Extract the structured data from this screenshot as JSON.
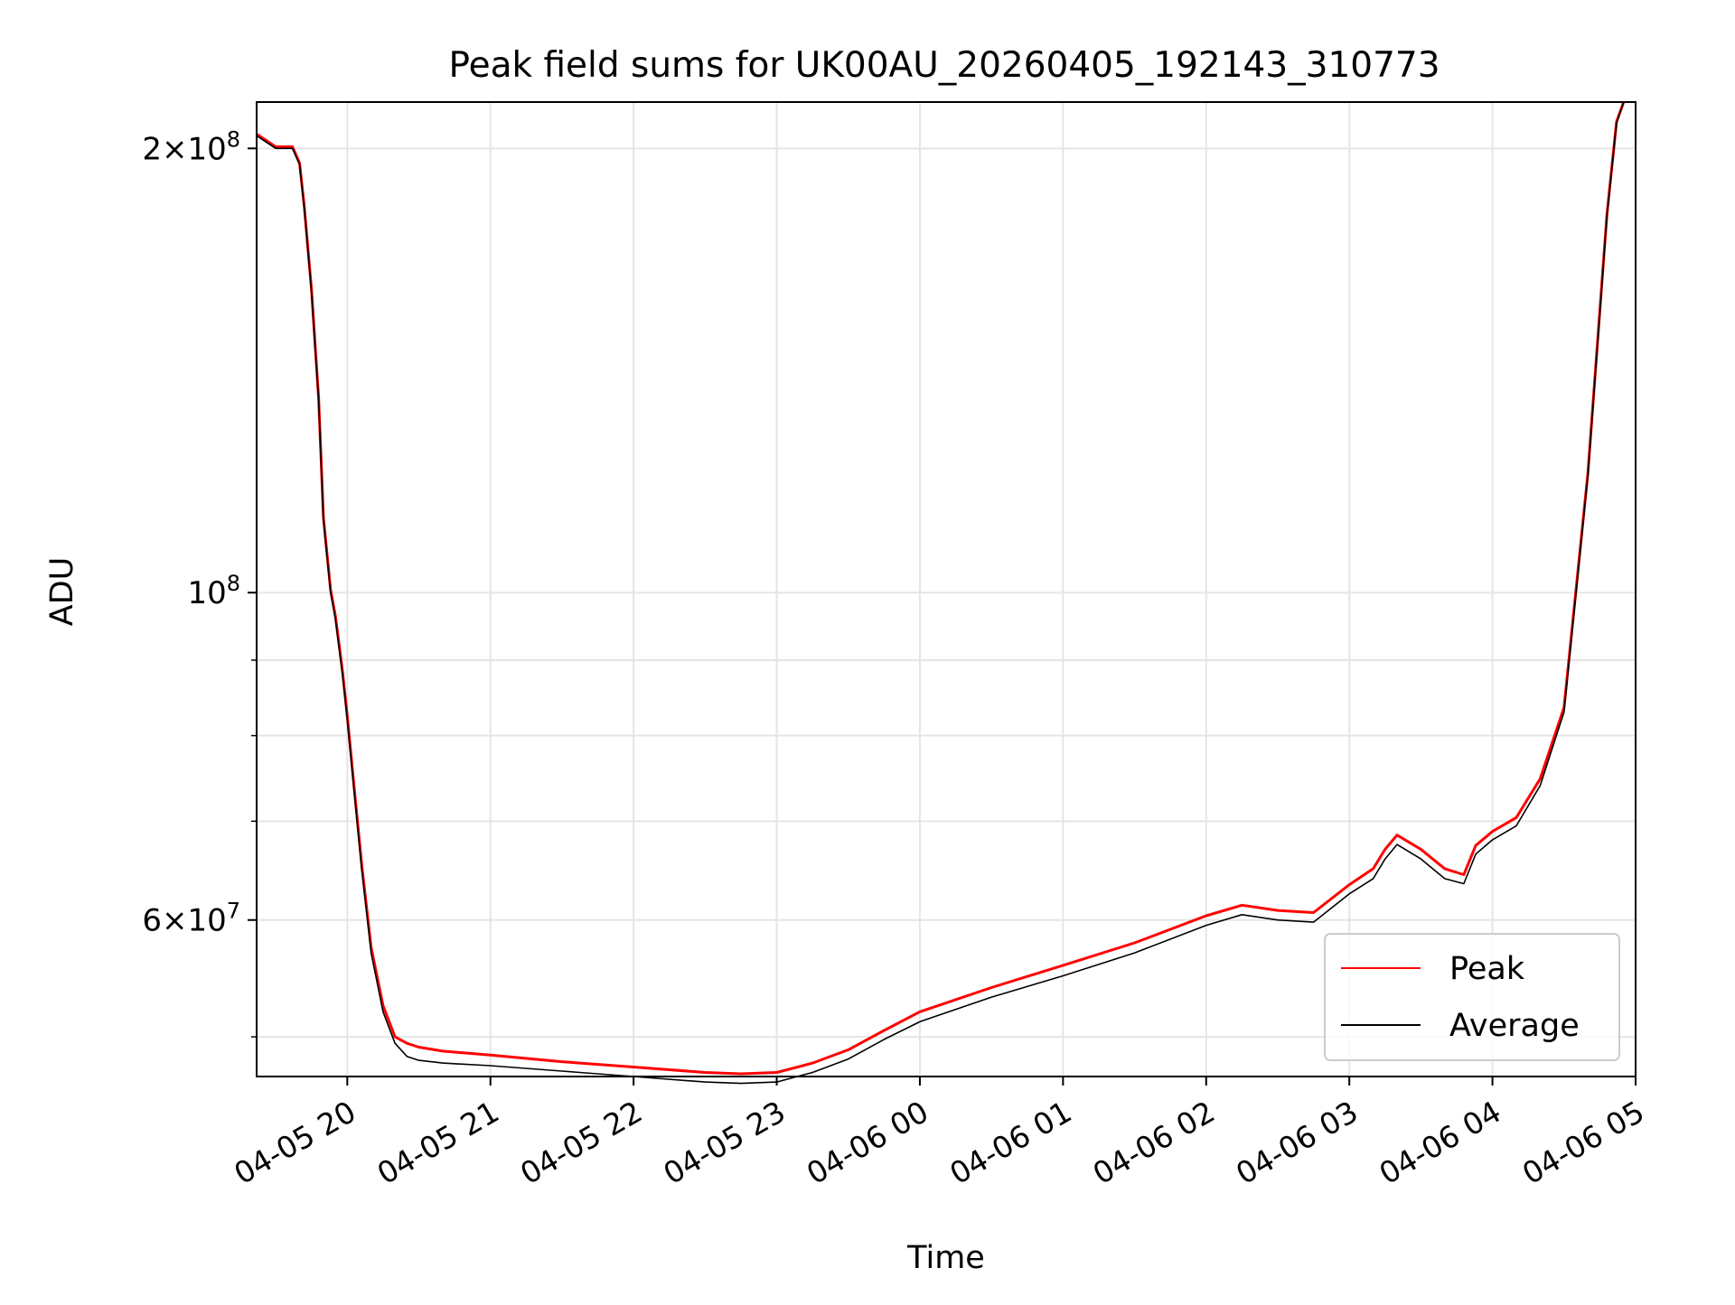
{
  "chart_data": {
    "type": "line",
    "title": "Peak field sums for UK00AU_20260405_192143_310773",
    "xlabel": "Time",
    "ylabel": "ADU",
    "yscale": "log",
    "grid": true,
    "legend_position": "bottom-right",
    "xlim": [
      "2026-04-05 19:22",
      "2026-04-06 05:00"
    ],
    "ylim": [
      47000000,
      215000000
    ],
    "x_ticks": [
      {
        "value": "2026-04-05 20:00",
        "label": "04-05 20"
      },
      {
        "value": "2026-04-05 21:00",
        "label": "04-05 21"
      },
      {
        "value": "2026-04-05 22:00",
        "label": "04-05 22"
      },
      {
        "value": "2026-04-05 23:00",
        "label": "04-05 23"
      },
      {
        "value": "2026-04-06 00:00",
        "label": "04-06 00"
      },
      {
        "value": "2026-04-06 01:00",
        "label": "04-06 01"
      },
      {
        "value": "2026-04-06 02:00",
        "label": "04-06 02"
      },
      {
        "value": "2026-04-06 03:00",
        "label": "04-06 03"
      },
      {
        "value": "2026-04-06 04:00",
        "label": "04-06 04"
      },
      {
        "value": "2026-04-06 05:00",
        "label": "04-06 05"
      }
    ],
    "y_major_ticks": [
      {
        "value": 200000000,
        "mantissa": "2",
        "exponent": "8"
      },
      {
        "value": 100000000,
        "mantissa": "",
        "exponent": "8"
      },
      {
        "value": 60000000,
        "mantissa": "6",
        "exponent": "7"
      }
    ],
    "y_minor_ticks": [
      50000000,
      70000000,
      80000000,
      90000000
    ],
    "x": [
      "2026-04-05 19:22",
      "2026-04-05 19:30",
      "2026-04-05 19:37",
      "2026-04-05 19:40",
      "2026-04-05 19:42",
      "2026-04-05 19:45",
      "2026-04-05 19:48",
      "2026-04-05 19:50",
      "2026-04-05 19:53",
      "2026-04-05 19:55",
      "2026-04-05 19:58",
      "2026-04-05 20:00",
      "2026-04-05 20:03",
      "2026-04-05 20:06",
      "2026-04-05 20:10",
      "2026-04-05 20:15",
      "2026-04-05 20:20",
      "2026-04-05 20:25",
      "2026-04-05 20:30",
      "2026-04-05 20:40",
      "2026-04-05 21:00",
      "2026-04-05 21:30",
      "2026-04-05 22:00",
      "2026-04-05 22:30",
      "2026-04-05 22:45",
      "2026-04-05 23:00",
      "2026-04-05 23:15",
      "2026-04-05 23:30",
      "2026-04-05 23:45",
      "2026-04-06 00:00",
      "2026-04-06 00:30",
      "2026-04-06 01:00",
      "2026-04-06 01:30",
      "2026-04-06 02:00",
      "2026-04-06 02:15",
      "2026-04-06 02:30",
      "2026-04-06 02:45",
      "2026-04-06 03:00",
      "2026-04-06 03:10",
      "2026-04-06 03:15",
      "2026-04-06 03:20",
      "2026-04-06 03:30",
      "2026-04-06 03:40",
      "2026-04-06 03:48",
      "2026-04-06 03:53",
      "2026-04-06 04:00",
      "2026-04-06 04:10",
      "2026-04-06 04:20",
      "2026-04-06 04:30",
      "2026-04-06 04:40",
      "2026-04-06 04:48",
      "2026-04-06 04:52",
      "2026-04-06 04:55"
    ],
    "series": [
      {
        "name": "Average",
        "color": "#000000",
        "values": [
          204000000,
          200000000,
          200000000,
          195000000,
          182000000,
          160000000,
          135000000,
          112000000,
          100000000,
          96000000,
          88000000,
          82000000,
          73000000,
          65000000,
          57000000,
          52000000,
          49500000,
          48500000,
          48200000,
          48000000,
          47800000,
          47400000,
          47000000,
          46600000,
          46500000,
          46600000,
          47300000,
          48300000,
          49800000,
          51200000,
          53200000,
          55000000,
          57000000,
          59500000,
          60500000,
          60000000,
          59800000,
          62500000,
          64000000,
          66000000,
          67500000,
          66000000,
          64000000,
          63500000,
          66500000,
          68000000,
          69500000,
          74000000,
          83000000,
          120000000,
          180000000,
          208000000,
          215000000
        ]
      },
      {
        "name": "Peak",
        "color": "#ff0000",
        "values": [
          204500000,
          200500000,
          200500000,
          195500000,
          182500000,
          160500000,
          135500000,
          112500000,
          100500000,
          96500000,
          88500000,
          82500000,
          73500000,
          65500000,
          57500000,
          52500000,
          50000000,
          49500000,
          49200000,
          48900000,
          48600000,
          48100000,
          47700000,
          47300000,
          47200000,
          47300000,
          48000000,
          49000000,
          50500000,
          52000000,
          54000000,
          55900000,
          57900000,
          60400000,
          61400000,
          60900000,
          60700000,
          63400000,
          65000000,
          67000000,
          68500000,
          67000000,
          65000000,
          64400000,
          67400000,
          68900000,
          70400000,
          74800000,
          83600000,
          120500000,
          180500000,
          208500000,
          215000000
        ]
      }
    ]
  }
}
